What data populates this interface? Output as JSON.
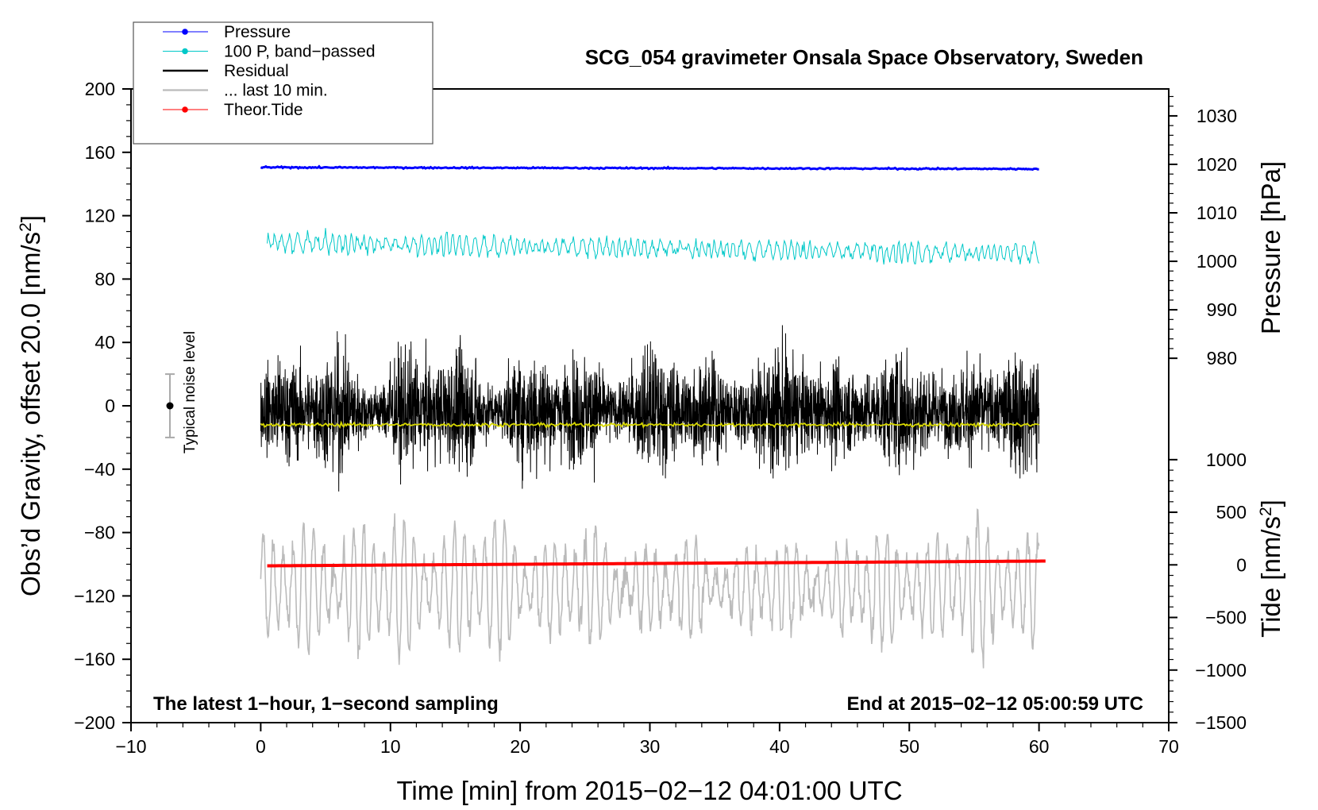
{
  "chart_data": {
    "type": "line",
    "title": "SCG_054 gravimeter Onsala Space Observatory, Sweden",
    "xlabel": "Time [min] from 2015−02−12 04:01:00 UTC",
    "ylabel": "Obs’d Gravity, offset 20.0 [nm/s²]",
    "ylabel_main": "Obs’d Gravity, offset 20.0 [nm/s",
    "ylabel_sup": "2",
    "ylabel_tail": "]",
    "y2_pressure_label": "Pressure [hPa]",
    "y2_tide_label": "Tide [nm/s²]",
    "y2_tide_label_main": "Tide [nm/s",
    "y2_tide_label_sup": "2",
    "y2_tide_label_tail": "]",
    "annotation_left": "The latest 1−hour, 1−second sampling",
    "annotation_right": "End at 2015−02−12 05:00:59 UTC",
    "noise_label": "Typical noise level",
    "xlim": [
      -10,
      70
    ],
    "ylim": [
      -200,
      200
    ],
    "x_ticks": [
      -10,
      0,
      10,
      20,
      30,
      40,
      50,
      60,
      70
    ],
    "x_tick_labels": [
      "−10",
      "0",
      "10",
      "20",
      "30",
      "40",
      "50",
      "60",
      "70"
    ],
    "y_ticks": [
      -200,
      -160,
      -120,
      -80,
      -40,
      0,
      40,
      80,
      120,
      160,
      200
    ],
    "y_tick_labels": [
      "−200",
      "−160",
      "−120",
      "−80",
      "−40",
      "0",
      "40",
      "80",
      "120",
      "160",
      "200"
    ],
    "pressure_axis": {
      "ticks": [
        980,
        990,
        1000,
        1010,
        1020,
        1030
      ],
      "tick_labels": [
        "980",
        "990",
        "1000",
        "1010",
        "1020",
        "1030"
      ],
      "value_to_gravity": [
        [
          980,
          30
        ],
        [
          1030,
          183
        ]
      ]
    },
    "tide_axis": {
      "ticks": [
        -1500,
        -1000,
        -500,
        0,
        500,
        1000
      ],
      "tick_labels": [
        "−1500",
        "−1000",
        "−500",
        "0",
        "500",
        "1000"
      ],
      "value_to_gravity": [
        [
          -1500,
          -200
        ],
        [
          1000,
          -34
        ]
      ]
    },
    "noise_bar": {
      "x": -7,
      "center": 0,
      "low": -20,
      "high": 20
    },
    "legend": [
      {
        "label": "Pressure",
        "color": "#0000ff",
        "marker": true
      },
      {
        "label": "100 P, band−passed",
        "color": "#00c8c8",
        "marker": true
      },
      {
        "label": "Residual",
        "color": "#000000",
        "marker": false
      },
      {
        "label": "... last 10 min.",
        "color": "#bbbbbb",
        "marker": false
      },
      {
        "label": "Theor.Tide",
        "color": "#ff0000",
        "marker": true
      }
    ],
    "series": [
      {
        "name": "Pressure",
        "color": "#0000ff",
        "x_range": [
          0,
          60
        ],
        "level": 150.5,
        "noise": 0.6,
        "drift": -1.0
      },
      {
        "name": "100 P, band−passed",
        "color": "#00c8c8",
        "x_range": [
          0.5,
          60
        ],
        "level": 103,
        "noise": 5,
        "drift": -7
      },
      {
        "name": "Residual",
        "color": "#000000",
        "x_range": [
          0,
          60
        ],
        "level": -3,
        "noise": 20,
        "drift": 0
      },
      {
        "name": "Residual smoothed",
        "color": "#d8d800",
        "x_range": [
          0,
          60
        ],
        "level": -12,
        "noise": 0.8,
        "drift": 0
      },
      {
        "name": "... last 10 min.",
        "color": "#bbbbbb",
        "x_range": [
          0,
          60
        ],
        "level": -115,
        "noise": 35,
        "drift": 0
      },
      {
        "name": "Theor.Tide",
        "color": "#ff0000",
        "x_range": [
          0.5,
          60.5
        ],
        "level": -101,
        "noise": 0,
        "drift": 3
      }
    ]
  }
}
